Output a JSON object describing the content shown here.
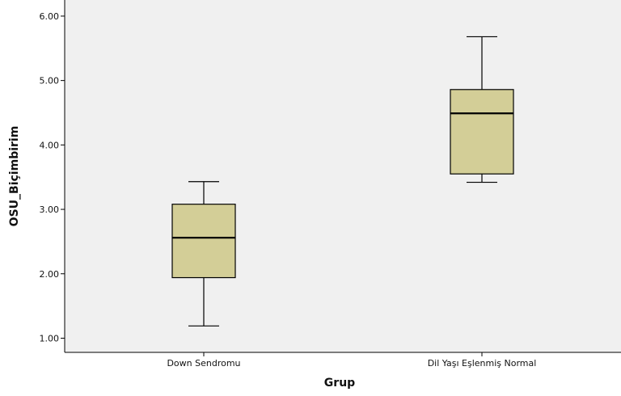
{
  "chart_data": {
    "type": "boxplot",
    "title": "",
    "xlabel": "Grup",
    "ylabel": "OSU_Biçimbirim",
    "ylim": [
      0.78,
      6.25
    ],
    "yticks": [
      1.0,
      2.0,
      3.0,
      4.0,
      5.0,
      6.0
    ],
    "ytick_labels": [
      "1.00",
      "2.00",
      "3.00",
      "4.00",
      "5.00",
      "6.00"
    ],
    "grid": false,
    "categories": [
      "Down Sendromu",
      "Dil Yaşı Eşlenmiş Normal"
    ],
    "boxes": [
      {
        "min": 1.19,
        "q1": 1.94,
        "median": 2.56,
        "q3": 3.08,
        "max": 3.43
      },
      {
        "min": 3.42,
        "q1": 3.55,
        "median": 4.49,
        "q3": 4.86,
        "max": 5.68
      }
    ],
    "colors": {
      "plot_background": "#f0f0f0",
      "box_fill": "#d3ce97",
      "line": "#000000"
    }
  }
}
